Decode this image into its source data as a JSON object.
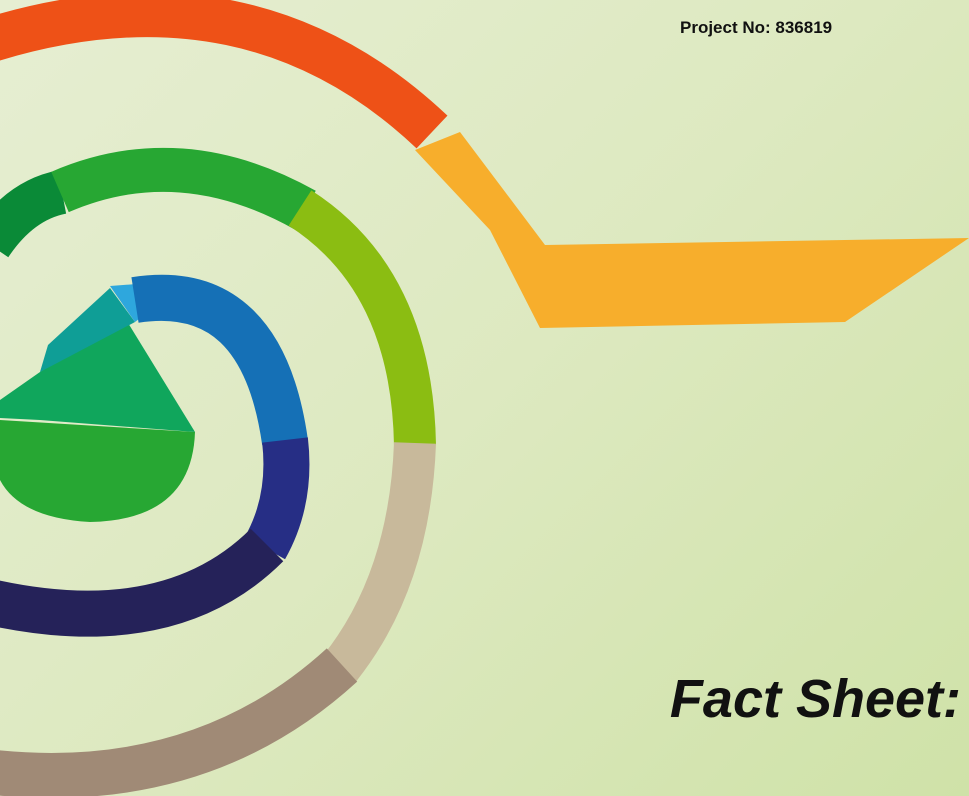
{
  "header": {
    "project_no": "Project No: 836819"
  },
  "title": "Fact Sheet:"
}
